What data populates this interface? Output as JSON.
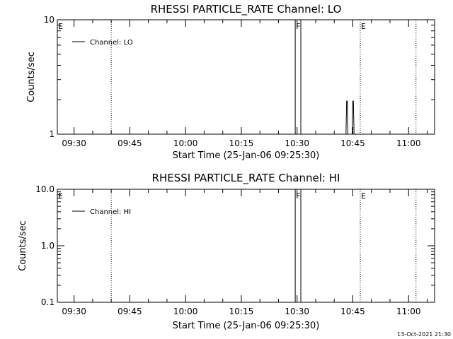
{
  "footer": {
    "timestamp": "13-Oct-2021 21:30"
  },
  "chart_data": [
    {
      "type": "line",
      "title": "RHESSI PARTICLE_RATE Channel: LO",
      "xlabel": "Start Time (25-Jan-06 09:25:30)",
      "ylabel": "Counts/sec",
      "yscale": "log",
      "ylim": [
        1,
        10
      ],
      "xlim": [
        "09:25:30",
        "11:07:00"
      ],
      "xticks": [
        "09:30",
        "09:45",
        "10:00",
        "10:15",
        "10:30",
        "10:45",
        "11:00"
      ],
      "yticks": [
        "1",
        "10"
      ],
      "legend": {
        "position": "top-left",
        "label": "Channel: LO"
      },
      "markers": [
        {
          "time": "09:25:30",
          "label": "E"
        },
        {
          "time": "10:29:30",
          "label": "F"
        },
        {
          "time": "10:47:00",
          "label": "E"
        }
      ],
      "dotted_lines": [
        "09:40:00",
        "10:47:00",
        "11:02:00"
      ],
      "series": [
        {
          "x": [
            "10:29:30",
            "10:29:30",
            "10:31:00",
            "10:31:00",
            "10:43:10",
            "10:43:20",
            "10:43:30",
            "10:43:40",
            "10:44:50",
            "10:45:00",
            "10:45:10",
            "10:45:20"
          ],
          "y": [
            1,
            10,
            10,
            1,
            1,
            1.95,
            1.95,
            1,
            1,
            1.95,
            1.95,
            1
          ]
        }
      ]
    },
    {
      "type": "line",
      "title": "RHESSI PARTICLE_RATE Channel: HI",
      "xlabel": "Start Time (25-Jan-06 09:25:30)",
      "ylabel": "Counts/sec",
      "yscale": "log",
      "ylim": [
        0.1,
        10
      ],
      "xlim": [
        "09:25:30",
        "11:07:00"
      ],
      "xticks": [
        "09:30",
        "09:45",
        "10:00",
        "10:15",
        "10:30",
        "10:45",
        "11:00"
      ],
      "yticks": [
        "0.1",
        "1.0",
        "10.0"
      ],
      "legend": {
        "position": "top-left",
        "label": "Channel: HI"
      },
      "markers": [
        {
          "time": "09:25:30",
          "label": "E"
        },
        {
          "time": "10:29:30",
          "label": "F"
        },
        {
          "time": "10:47:00",
          "label": "E"
        }
      ],
      "dotted_lines": [
        "09:40:00",
        "10:47:00",
        "11:02:00"
      ],
      "series": [
        {
          "x": [
            "10:29:30",
            "10:29:30",
            "10:31:00",
            "10:31:00"
          ],
          "y": [
            0.1,
            10,
            10,
            0.1
          ]
        }
      ]
    }
  ]
}
